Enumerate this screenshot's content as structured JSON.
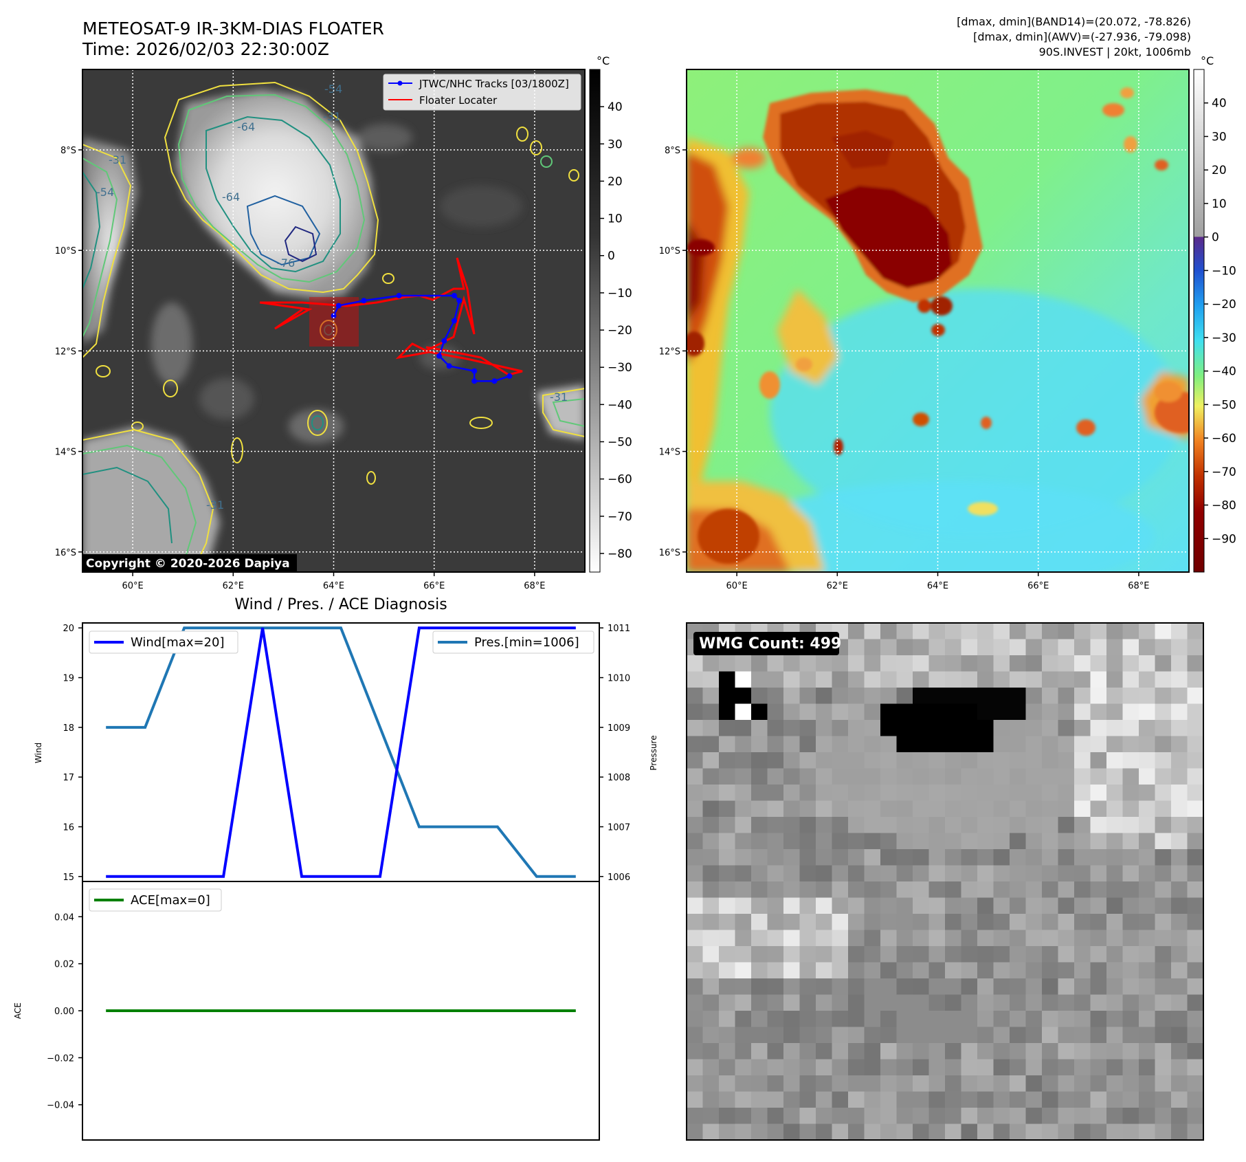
{
  "header": {
    "title_line1": "METEOSAT-9 IR-3KM-DIAS FLOATER",
    "title_line2": "Time: 2026/02/03 22:30:00Z",
    "info_line1": "[dmax, dmin](BAND14)=(20.072, -78.826)",
    "info_line2": "[dmax, dmin](AWV)=(-27.936, -79.098)",
    "info_line3": "90S.INVEST | 20kt, 1006mb"
  },
  "map_axes": {
    "lat_labels": [
      "8°S",
      "10°S",
      "12°S",
      "14°S",
      "16°S"
    ],
    "lat_values": [
      -8,
      -10,
      -12,
      -14,
      -16
    ],
    "lon_labels": [
      "60°E",
      "62°E",
      "64°E",
      "66°E",
      "68°E"
    ],
    "lon_values": [
      60,
      62,
      64,
      66,
      68
    ],
    "lon_range": [
      59,
      69
    ],
    "lat_range": [
      -16.4,
      -6.4
    ]
  },
  "ir_panel": {
    "colorbar_unit": "°C",
    "colorbar_ticks": [
      "40",
      "30",
      "20",
      "10",
      "0",
      "−10",
      "−20",
      "−30",
      "−40",
      "−50",
      "−60",
      "−70",
      "−80"
    ],
    "colorbar_values": [
      40,
      30,
      20,
      10,
      0,
      -10,
      -20,
      -30,
      -40,
      -50,
      -60,
      -70,
      -80
    ],
    "colorbar_range": [
      -85,
      50
    ],
    "legend_track": "JTWC/NHC Tracks [03/1800Z]",
    "legend_floater": "Floater Locater",
    "contour_labels": [
      "-54",
      "-31",
      "-64",
      "-76",
      "-64",
      "-31",
      "-54",
      "-31",
      "-31"
    ],
    "copyright": "Copyright © 2020-2026 Dapiya",
    "track_color": "#0000ff",
    "floater_color": "#ff0000",
    "track_points": [
      [
        67.5,
        -12.5
      ],
      [
        67.2,
        -12.6
      ],
      [
        66.8,
        -12.6
      ],
      [
        66.8,
        -12.4
      ],
      [
        66.3,
        -12.3
      ],
      [
        66.1,
        -12.1
      ],
      [
        66.2,
        -11.8
      ],
      [
        66.4,
        -11.4
      ],
      [
        66.5,
        -11.0
      ],
      [
        66.4,
        -10.9
      ],
      [
        65.3,
        -10.9
      ],
      [
        64.6,
        -11.0
      ],
      [
        64.1,
        -11.1
      ],
      [
        64.0,
        -11.3
      ]
    ]
  },
  "awv_panel": {
    "colorbar_unit": "°C",
    "colorbar_ticks": [
      "40",
      "30",
      "20",
      "10",
      "0",
      "−10",
      "−20",
      "−30",
      "−40",
      "−50",
      "−60",
      "−70",
      "−80",
      "−90"
    ],
    "colorbar_values": [
      40,
      30,
      20,
      10,
      0,
      -10,
      -20,
      -30,
      -40,
      -50,
      -60,
      -70,
      -80,
      -90
    ],
    "colorbar_range": [
      -100,
      50
    ]
  },
  "diagnosis": {
    "title": "Wind / Pres. / ACE Diagnosis",
    "wind_ylabel": "Wind",
    "pressure_ylabel": "Pressure",
    "ace_ylabel": "ACE",
    "wind_legend": "Wind[max=20]",
    "pres_legend": "Pres.[min=1006]",
    "ace_legend": "ACE[max=0]",
    "wind_color": "#0000ff",
    "pres_color": "#1f77b4",
    "ace_color": "#008000"
  },
  "wmg_panel": {
    "label": "WMG Count: 499"
  },
  "chart_data": [
    {
      "type": "line",
      "title": "Wind / Pres. / ACE Diagnosis",
      "x": [
        0,
        1,
        2,
        3,
        4,
        5,
        6,
        7,
        8,
        9,
        10,
        11,
        12
      ],
      "series": [
        {
          "name": "Wind[max=20]",
          "axis": "left",
          "values": [
            15,
            15,
            15,
            15,
            20,
            15,
            15,
            15,
            20,
            20,
            20,
            20,
            20
          ]
        },
        {
          "name": "Pres.[min=1006]",
          "axis": "right",
          "values": [
            1009,
            1009,
            1011,
            1011,
            1011,
            1011,
            1011,
            1009,
            1007,
            1007,
            1007,
            1006,
            1006
          ]
        }
      ],
      "ylabel": "Wind",
      "ylabel_right": "Pressure",
      "ylim": [
        14.9,
        20.1
      ],
      "ylim_right": [
        1005.9,
        1011.1
      ],
      "yticks": [
        15,
        16,
        17,
        18,
        19,
        20
      ],
      "yticks_right": [
        1006,
        1007,
        1008,
        1009,
        1010,
        1011
      ],
      "legend": [
        "top-left",
        "top-right"
      ]
    },
    {
      "type": "line",
      "x": [
        0,
        1,
        2,
        3,
        4,
        5,
        6,
        7,
        8,
        9,
        10,
        11,
        12
      ],
      "series": [
        {
          "name": "ACE[max=0]",
          "values": [
            0,
            0,
            0,
            0,
            0,
            0,
            0,
            0,
            0,
            0,
            0,
            0,
            0
          ]
        }
      ],
      "ylabel": "ACE",
      "ylim": [
        -0.055,
        0.055
      ],
      "yticks": [
        -0.04,
        -0.02,
        0.0,
        0.02,
        0.04
      ],
      "ytick_labels": [
        "−0.04",
        "−0.02",
        "0.00",
        "0.02",
        "0.04"
      ],
      "legend": "top-left"
    }
  ]
}
